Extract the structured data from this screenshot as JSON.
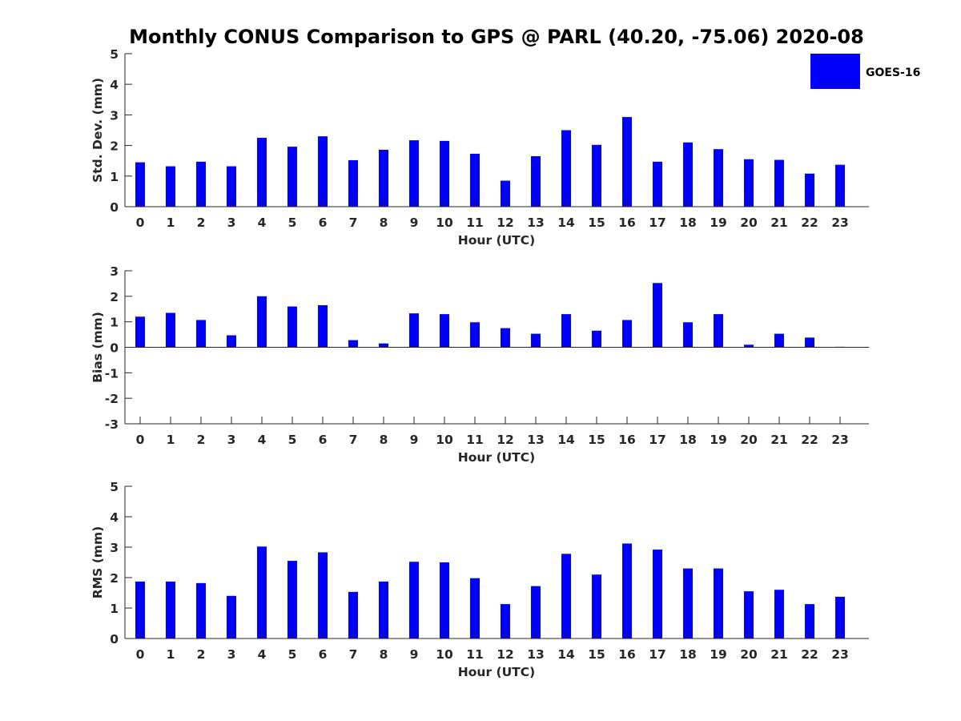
{
  "title": "Monthly CONUS Comparison to GPS @ PARL (40.20, -75.06) 2020-08",
  "legend": {
    "label": "GOES-16",
    "color": "#0000ff"
  },
  "chart_data": [
    {
      "type": "bar",
      "xlabel": "Hour (UTC)",
      "ylabel": "Std. Dev. (mm)",
      "ylim": [
        0,
        5
      ],
      "yticks": [
        0,
        1,
        2,
        3,
        4,
        5
      ],
      "categories": [
        "0",
        "1",
        "2",
        "3",
        "4",
        "5",
        "6",
        "7",
        "8",
        "9",
        "10",
        "11",
        "12",
        "13",
        "14",
        "15",
        "16",
        "17",
        "18",
        "19",
        "20",
        "21",
        "22",
        "23"
      ],
      "series": [
        {
          "name": "GOES-16",
          "values": [
            1.45,
            1.32,
            1.47,
            1.32,
            2.25,
            1.96,
            2.3,
            1.52,
            1.86,
            2.17,
            2.15,
            1.73,
            0.85,
            1.65,
            2.5,
            2.02,
            2.93,
            1.47,
            2.1,
            1.88,
            1.55,
            1.53,
            1.08,
            1.37
          ]
        }
      ],
      "grid": false,
      "legend_position": "top-right"
    },
    {
      "type": "bar",
      "xlabel": "Hour (UTC)",
      "ylabel": "Bias (mm)",
      "ylim": [
        -3,
        3
      ],
      "yticks": [
        -3,
        -2,
        -1,
        0,
        1,
        2,
        3
      ],
      "categories": [
        "0",
        "1",
        "2",
        "3",
        "4",
        "5",
        "6",
        "7",
        "8",
        "9",
        "10",
        "11",
        "12",
        "13",
        "14",
        "15",
        "16",
        "17",
        "18",
        "19",
        "20",
        "21",
        "22",
        "23"
      ],
      "series": [
        {
          "name": "GOES-16",
          "values": [
            1.2,
            1.35,
            1.07,
            0.47,
            2.0,
            1.6,
            1.65,
            0.28,
            0.15,
            1.33,
            1.3,
            0.98,
            0.75,
            0.53,
            1.3,
            0.65,
            1.07,
            2.52,
            0.98,
            1.3,
            0.1,
            0.53,
            0.38,
            0.02
          ]
        }
      ],
      "grid": false
    },
    {
      "type": "bar",
      "xlabel": "Hour (UTC)",
      "ylabel": "RMS (mm)",
      "ylim": [
        0,
        5
      ],
      "yticks": [
        0,
        1,
        2,
        3,
        4,
        5
      ],
      "categories": [
        "0",
        "1",
        "2",
        "3",
        "4",
        "5",
        "6",
        "7",
        "8",
        "9",
        "10",
        "11",
        "12",
        "13",
        "14",
        "15",
        "16",
        "17",
        "18",
        "19",
        "20",
        "21",
        "22",
        "23"
      ],
      "series": [
        {
          "name": "GOES-16",
          "values": [
            1.87,
            1.87,
            1.82,
            1.4,
            3.02,
            2.55,
            2.83,
            1.53,
            1.87,
            2.52,
            2.5,
            1.98,
            1.13,
            1.72,
            2.78,
            2.1,
            3.12,
            2.92,
            2.3,
            2.3,
            1.55,
            1.6,
            1.13,
            1.37
          ]
        }
      ],
      "grid": false
    }
  ]
}
